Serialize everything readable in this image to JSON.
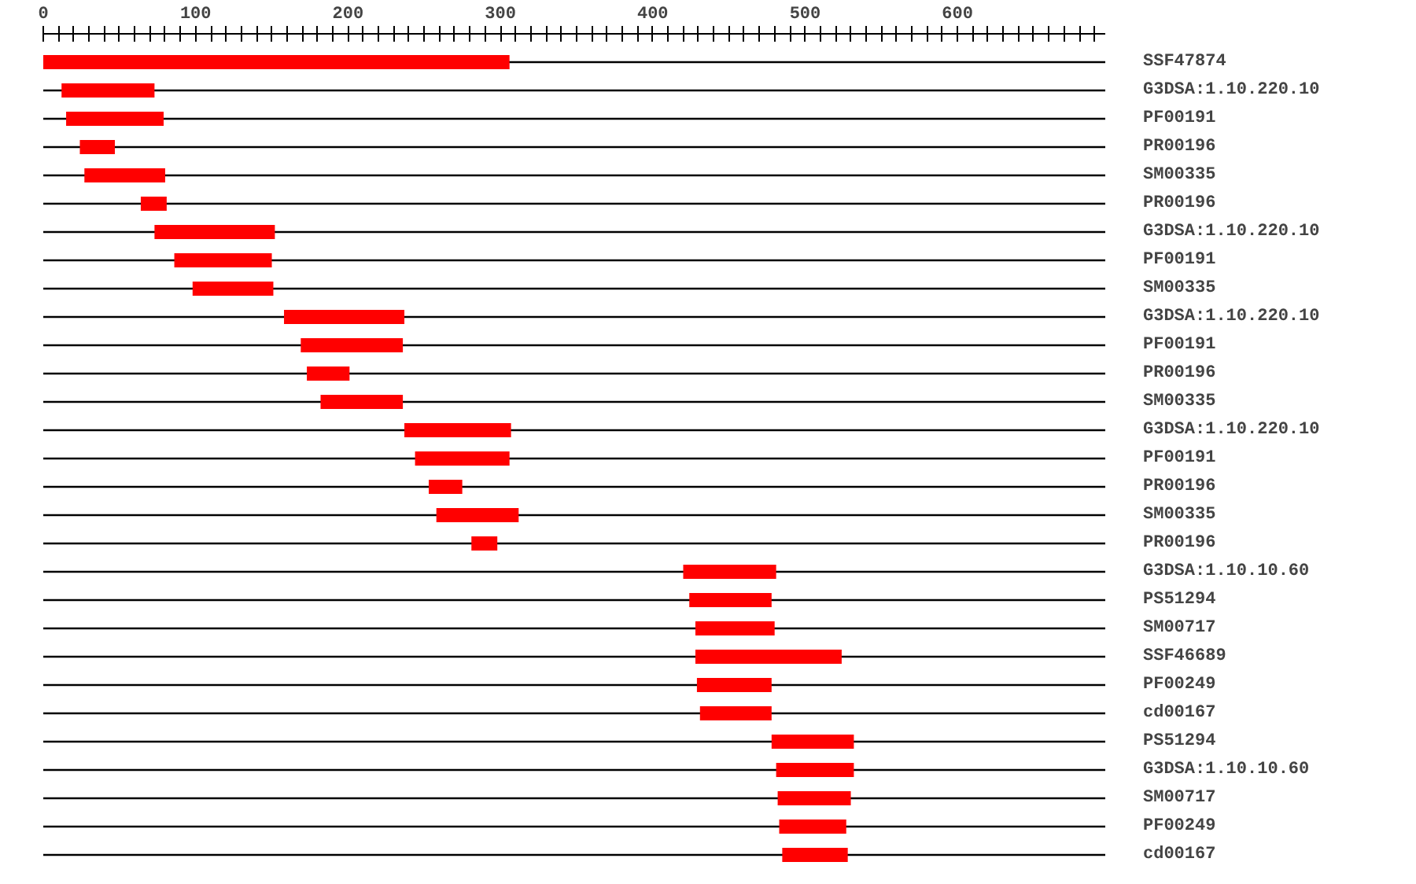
{
  "chart_data": {
    "type": "bar",
    "orientation": "horizontal",
    "color": "#ff0000",
    "grid": "y",
    "categories": [
      "SSF47874",
      "G3DSA:1.10.220.10",
      "PF00191",
      "PR00196",
      "SM00335",
      "PR00196",
      "G3DSA:1.10.220.10",
      "PF00191",
      "SM00335",
      "G3DSA:1.10.220.10",
      "PF00191",
      "PR00196",
      "SM00335",
      "G3DSA:1.10.220.10",
      "PF00191",
      "PR00196",
      "SM00335",
      "PR00196",
      "G3DSA:1.10.10.60",
      "PS51294",
      "SM00717",
      "SSF46689",
      "PF00249",
      "cd00167",
      "PS51294",
      "G3DSA:1.10.10.60",
      "SM00717",
      "PF00249",
      "cd00167"
    ],
    "base": [
      0,
      12,
      15,
      24,
      27,
      64,
      73,
      86,
      98,
      158,
      169,
      173,
      182,
      237,
      244,
      253,
      258,
      281,
      420,
      424,
      428,
      428,
      429,
      431,
      478,
      481,
      482,
      483,
      485
    ],
    "values": [
      306,
      61,
      64,
      23,
      53,
      17,
      79,
      64,
      53,
      79,
      67,
      28,
      54,
      70,
      62,
      22,
      54,
      17,
      61,
      54,
      52,
      96,
      49,
      47,
      54,
      51,
      48,
      44,
      43
    ],
    "xlim": [
      0,
      697
    ],
    "xticks": [
      0,
      {
        "value": 10,
        "label": null
      },
      {
        "value": 20,
        "label": null
      },
      {
        "value": 30,
        "label": null
      },
      {
        "value": 40,
        "label": null
      },
      {
        "value": 50,
        "label": null
      },
      {
        "value": 60,
        "label": null
      },
      {
        "value": 70,
        "label": null
      },
      {
        "value": 80,
        "label": null
      },
      {
        "value": 90,
        "label": null
      },
      100,
      {
        "value": 110,
        "label": null
      },
      {
        "value": 120,
        "label": null
      },
      {
        "value": 130,
        "label": null
      },
      {
        "value": 140,
        "label": null
      },
      {
        "value": 150,
        "label": null
      },
      {
        "value": 160,
        "label": null
      },
      {
        "value": 170,
        "label": null
      },
      {
        "value": 180,
        "label": null
      },
      {
        "value": 190,
        "label": null
      },
      200,
      {
        "value": 210,
        "label": null
      },
      {
        "value": 220,
        "label": null
      },
      {
        "value": 230,
        "label": null
      },
      {
        "value": 240,
        "label": null
      },
      {
        "value": 250,
        "label": null
      },
      {
        "value": 260,
        "label": null
      },
      {
        "value": 270,
        "label": null
      },
      {
        "value": 280,
        "label": null
      },
      {
        "value": 290,
        "label": null
      },
      300,
      {
        "value": 310,
        "label": null
      },
      {
        "value": 320,
        "label": null
      },
      {
        "value": 330,
        "label": null
      },
      {
        "value": 340,
        "label": null
      },
      {
        "value": 350,
        "label": null
      },
      {
        "value": 360,
        "label": null
      },
      {
        "value": 370,
        "label": null
      },
      {
        "value": 380,
        "label": null
      },
      {
        "value": 390,
        "label": null
      },
      400,
      {
        "value": 410,
        "label": null
      },
      {
        "value": 420,
        "label": null
      },
      {
        "value": 430,
        "label": null
      },
      {
        "value": 440,
        "label": null
      },
      {
        "value": 450,
        "label": null
      },
      {
        "value": 460,
        "label": null
      },
      {
        "value": 470,
        "label": null
      },
      {
        "value": 480,
        "label": null
      },
      {
        "value": 490,
        "label": null
      },
      500,
      {
        "value": 510,
        "label": null
      },
      {
        "value": 520,
        "label": null
      },
      {
        "value": 530,
        "label": null
      },
      {
        "value": 540,
        "label": null
      },
      {
        "value": 550,
        "label": null
      },
      {
        "value": 560,
        "label": null
      },
      {
        "value": 570,
        "label": null
      },
      {
        "value": 580,
        "label": null
      },
      {
        "value": 590,
        "label": null
      },
      600,
      {
        "value": 610,
        "label": null
      },
      {
        "value": 620,
        "label": null
      },
      {
        "value": 630,
        "label": null
      },
      {
        "value": 640,
        "label": null
      },
      {
        "value": 650,
        "label": null
      },
      {
        "value": 660,
        "label": null
      },
      {
        "value": 670,
        "label": null
      },
      {
        "value": 680,
        "label": null
      },
      {
        "value": 690,
        "label": null
      }
    ]
  }
}
